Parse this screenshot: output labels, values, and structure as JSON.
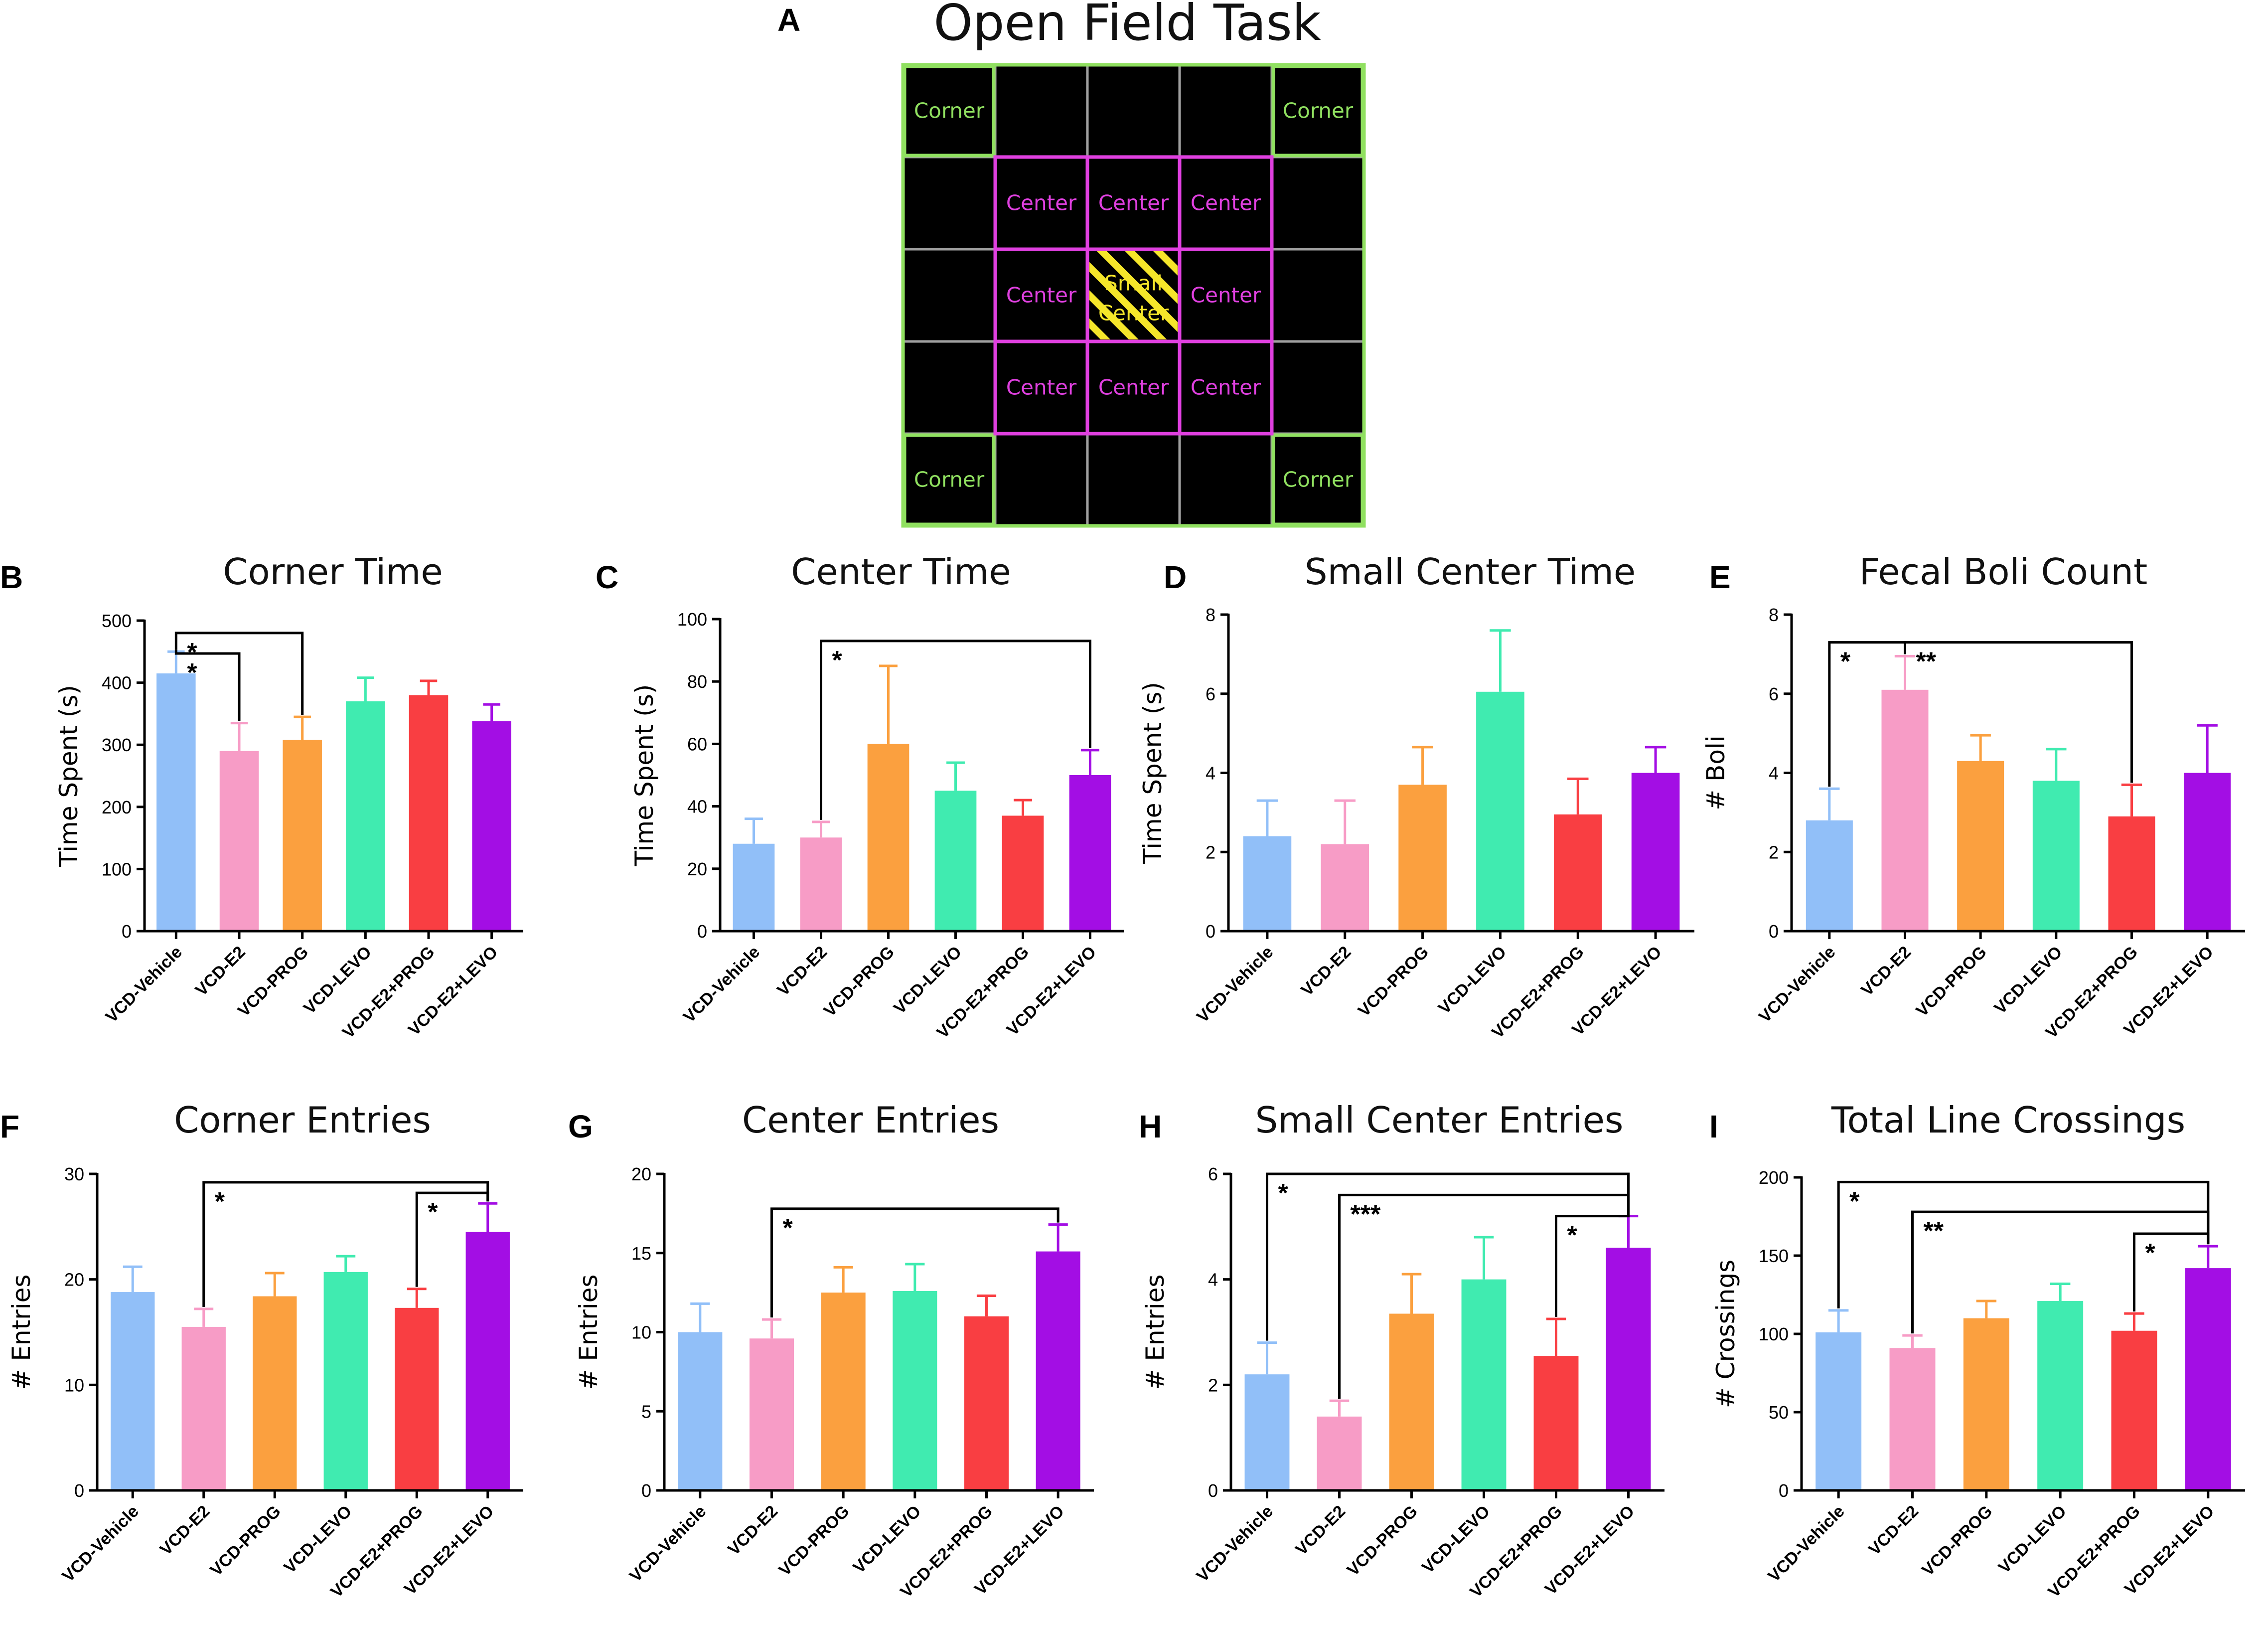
{
  "figure": {
    "panel_a": {
      "letter": "A",
      "title": "Open Field Task",
      "grid_rows": [
        [
          "Corner",
          "",
          "",
          "",
          "Corner"
        ],
        [
          "",
          "Center",
          "Center",
          "Center",
          ""
        ],
        [
          "",
          "Center",
          "Small Center",
          "Center",
          ""
        ],
        [
          "",
          "Center",
          "Center",
          "Center",
          ""
        ],
        [
          "Corner",
          "",
          "",
          "",
          "Corner"
        ]
      ],
      "small_center_lines": [
        "Small",
        "Center"
      ],
      "colors": {
        "corner": "#90e060",
        "center": "#e040e0",
        "small_center": "#f5e62a",
        "grid": "#a0a0a0",
        "background": "#000000"
      }
    }
  },
  "series_colors": [
    "#91bff8",
    "#f79cc6",
    "#fba03f",
    "#40ebb0",
    "#f93e42",
    "#a30ee4"
  ],
  "chart_data": [
    {
      "id": "B",
      "type": "bar",
      "title": "Corner Time",
      "ylabel": "Time Spent (s)",
      "categories": [
        "VCD-Vehicle",
        "VCD-E2",
        "VCD-PROG",
        "VCD-LEVO",
        "VCD-E2+PROG",
        "VCD-E2+LEVO"
      ],
      "values": [
        415,
        290,
        308,
        370,
        380,
        338
      ],
      "errors": [
        35,
        45,
        37,
        38,
        23,
        27
      ],
      "ylim": [
        0,
        500
      ],
      "yticks": [
        0,
        100,
        200,
        300,
        400,
        500
      ],
      "significance": [
        {
          "from": 0,
          "to": 1,
          "label": "*",
          "level": 447
        },
        {
          "from": 0,
          "to": 2,
          "label": "*",
          "level": 480
        }
      ]
    },
    {
      "id": "C",
      "type": "bar",
      "title": "Center Time",
      "ylabel": "Time Spent (s)",
      "categories": [
        "VCD-Vehicle",
        "VCD-E2",
        "VCD-PROG",
        "VCD-LEVO",
        "VCD-E2+PROG",
        "VCD-E2+LEVO"
      ],
      "values": [
        28,
        30,
        60,
        45,
        37,
        50
      ],
      "errors": [
        8,
        5,
        25,
        9,
        5,
        8
      ],
      "ylim": [
        0,
        100
      ],
      "yticks": [
        0,
        20,
        40,
        60,
        80,
        100
      ],
      "significance": [
        {
          "from": 1,
          "to": 5,
          "label": "*",
          "level": 93
        }
      ]
    },
    {
      "id": "D",
      "type": "bar",
      "title": "Small Center Time",
      "ylabel": "Time Spent (s)",
      "categories": [
        "VCD-Vehicle",
        "VCD-E2",
        "VCD-PROG",
        "VCD-LEVO",
        "VCD-E2+PROG",
        "VCD-E2+LEVO"
      ],
      "values": [
        2.4,
        2.2,
        3.7,
        6.05,
        2.95,
        4.0
      ],
      "errors": [
        0.9,
        1.1,
        0.95,
        1.55,
        0.9,
        0.65
      ],
      "ylim": [
        0,
        8
      ],
      "yticks": [
        0,
        2,
        4,
        6,
        8
      ],
      "significance": []
    },
    {
      "id": "E",
      "type": "bar",
      "title": "Fecal Boli Count",
      "ylabel": "# Boli",
      "categories": [
        "VCD-Vehicle",
        "VCD-E2",
        "VCD-PROG",
        "VCD-LEVO",
        "VCD-E2+PROG",
        "VCD-E2+LEVO"
      ],
      "values": [
        2.8,
        6.1,
        4.3,
        3.8,
        2.9,
        4.0
      ],
      "errors": [
        0.8,
        0.85,
        0.65,
        0.8,
        0.8,
        1.2
      ],
      "ylim": [
        0,
        8
      ],
      "yticks": [
        0,
        2,
        4,
        6,
        8
      ],
      "significance": [
        {
          "from": 0,
          "to": 1,
          "label": "*",
          "level": 7.3
        },
        {
          "from": 1,
          "to": 4,
          "label": "**",
          "level": 7.3
        }
      ]
    },
    {
      "id": "F",
      "type": "bar",
      "title": "Corner Entries",
      "ylabel": "# Entries",
      "categories": [
        "VCD-Vehicle",
        "VCD-E2",
        "VCD-PROG",
        "VCD-LEVO",
        "VCD-E2+PROG",
        "VCD-E2+LEVO"
      ],
      "values": [
        18.8,
        15.5,
        18.4,
        20.7,
        17.3,
        24.5
      ],
      "errors": [
        2.4,
        1.7,
        2.2,
        1.5,
        1.8,
        2.7
      ],
      "ylim": [
        0,
        30
      ],
      "yticks": [
        0,
        10,
        20,
        30
      ],
      "significance": [
        {
          "from": 1,
          "to": 5,
          "label": "*",
          "level": 29.2
        },
        {
          "from": 4,
          "to": 5,
          "label": "*",
          "level": 28.2
        }
      ]
    },
    {
      "id": "G",
      "type": "bar",
      "title": "Center Entries",
      "ylabel": "# Entries",
      "categories": [
        "VCD-Vehicle",
        "VCD-E2",
        "VCD-PROG",
        "VCD-LEVO",
        "VCD-E2+PROG",
        "VCD-E2+LEVO"
      ],
      "values": [
        10.0,
        9.6,
        12.5,
        12.6,
        11.0,
        15.1
      ],
      "errors": [
        1.8,
        1.2,
        1.6,
        1.7,
        1.3,
        1.7
      ],
      "ylim": [
        0,
        20
      ],
      "yticks": [
        0,
        5,
        10,
        15,
        20
      ],
      "significance": [
        {
          "from": 1,
          "to": 5,
          "label": "*",
          "level": 17.8
        }
      ]
    },
    {
      "id": "H",
      "type": "bar",
      "title": "Small Center Entries",
      "ylabel": "# Entries",
      "categories": [
        "VCD-Vehicle",
        "VCD-E2",
        "VCD-PROG",
        "VCD-LEVO",
        "VCD-E2+PROG",
        "VCD-E2+LEVO"
      ],
      "values": [
        2.2,
        1.4,
        3.35,
        4.0,
        2.55,
        4.6
      ],
      "errors": [
        0.6,
        0.3,
        0.75,
        0.8,
        0.7,
        0.6
      ],
      "ylim": [
        0,
        6
      ],
      "yticks": [
        0,
        2,
        4,
        6
      ],
      "significance": [
        {
          "from": 0,
          "to": 5,
          "label": "*",
          "level": 6.0
        },
        {
          "from": 1,
          "to": 5,
          "label": "***",
          "level": 5.6
        },
        {
          "from": 4,
          "to": 5,
          "label": "*",
          "level": 5.2
        }
      ]
    },
    {
      "id": "I",
      "type": "bar",
      "title": "Total Line Crossings",
      "ylabel": "# Crossings",
      "categories": [
        "VCD-Vehicle",
        "VCD-E2",
        "VCD-PROG",
        "VCD-LEVO",
        "VCD-E2+PROG",
        "VCD-E2+LEVO"
      ],
      "values": [
        101,
        91,
        110,
        121,
        102,
        142
      ],
      "errors": [
        14,
        8,
        11,
        11,
        11,
        14
      ],
      "ylim": [
        0,
        200
      ],
      "yticks": [
        0,
        50,
        100,
        150,
        200
      ],
      "significance": [
        {
          "from": 0,
          "to": 5,
          "label": "*",
          "level": 197
        },
        {
          "from": 1,
          "to": 5,
          "label": "**",
          "level": 178
        },
        {
          "from": 4,
          "to": 5,
          "label": "*",
          "level": 164
        }
      ]
    }
  ]
}
